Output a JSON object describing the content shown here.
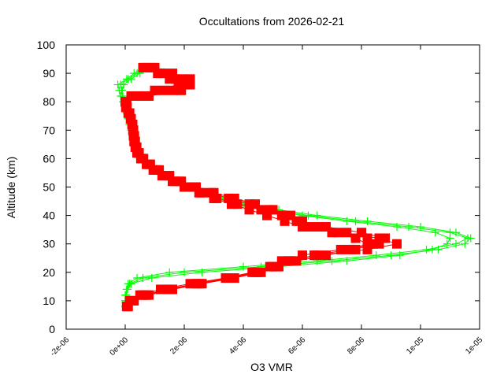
{
  "chart_data": {
    "type": "line",
    "title": "Occultations from 2026-02-21",
    "xlabel": "O3 VMR",
    "ylabel": "Altitude (km)",
    "xlim": [
      -2e-06,
      1.2e-05
    ],
    "ylim": [
      0,
      100
    ],
    "xticks": [
      -2e-06,
      0,
      2e-06,
      4e-06,
      6e-06,
      8e-06,
      1e-05,
      1.2e-05
    ],
    "xtick_labels": [
      "-2e-06",
      "0e+00",
      "2e-06",
      "4e-06",
      "6e-06",
      "8e-06",
      "1e-05",
      "1e-05"
    ],
    "yticks": [
      0,
      10,
      20,
      30,
      40,
      50,
      60,
      70,
      80,
      90,
      100
    ],
    "ytick_labels": [
      "0",
      "10",
      "20",
      "30",
      "40",
      "50",
      "60",
      "70",
      "80",
      "90",
      "100"
    ],
    "grid": false,
    "legend": null,
    "colors": {
      "green": "#00ff00",
      "red": "#ff0000",
      "axis": "#000000"
    },
    "altitudes": [
      8,
      10,
      12,
      14,
      16,
      18,
      20,
      22,
      24,
      26,
      28,
      30,
      32,
      34,
      36,
      38,
      40,
      42,
      44,
      46,
      48,
      50,
      52,
      54,
      56,
      58,
      60,
      62,
      64,
      66,
      68,
      70,
      72,
      74,
      76,
      78,
      80,
      82,
      84,
      86,
      88,
      90,
      92
    ],
    "series": [
      {
        "name": "green-1",
        "marker": "plus",
        "color": "#00ff00",
        "values": [
          0.0,
          0.0,
          0.0,
          5e-08,
          1e-07,
          4e-07,
          1.5e-06,
          4e-06,
          6.5e-06,
          8.5e-06,
          1.02e-05,
          1.12e-05,
          1.16e-05,
          1.1e-05,
          9.6e-06,
          7.8e-06,
          6.2e-06,
          5e-06,
          4e-06,
          3.2e-06,
          2.6e-06,
          2.1e-06,
          1.7e-06,
          1.3e-06,
          1e-06,
          7.5e-07,
          5.5e-07,
          4.2e-07,
          3.5e-07,
          3e-07,
          2.5e-07,
          2e-07,
          1.5e-07,
          1e-07,
          8e-08,
          2e-08,
          -5e-08,
          -1e-07,
          -1.2e-07,
          -1.5e-07,
          1e-07,
          4e-07,
          8e-07
        ]
      },
      {
        "name": "green-2",
        "marker": "plus",
        "color": "#00ff00",
        "values": [
          0.0,
          0.0,
          2e-08,
          5e-08,
          1.5e-07,
          6e-07,
          2e-06,
          4.6e-06,
          7e-06,
          9e-06,
          1.06e-05,
          1.15e-05,
          1.17e-05,
          1.12e-05,
          1e-05,
          8.2e-06,
          6.5e-06,
          5.2e-06,
          4.2e-06,
          3.4e-06,
          2.8e-06,
          2.2e-06,
          1.8e-06,
          1.4e-06,
          1.05e-06,
          8e-07,
          6e-07,
          4.5e-07,
          3.7e-07,
          3.2e-07,
          2.7e-07,
          2.2e-07,
          1.7e-07,
          1.2e-07,
          8e-08,
          0.0,
          -8e-08,
          -1.5e-07,
          -2e-07,
          -2.5e-07,
          5e-08,
          3e-07,
          6e-07
        ]
      },
      {
        "name": "green-3",
        "marker": "plus",
        "color": "#00ff00",
        "values": [
          2e-08,
          2e-08,
          3e-08,
          8e-08,
          2e-07,
          9e-07,
          2.6e-06,
          5.2e-06,
          7.5e-06,
          9.3e-06,
          1.04e-05,
          1.09e-05,
          1.1e-05,
          1.05e-05,
          9.2e-06,
          7.5e-06,
          6e-06,
          4.8e-06,
          3.9e-06,
          3.1e-06,
          2.5e-06,
          2e-06,
          1.6e-06,
          1.25e-06,
          9.5e-07,
          7e-07,
          5.2e-07,
          4e-07,
          3.3e-07,
          2.8e-07,
          2.4e-07,
          2e-07,
          1.4e-07,
          1e-07,
          5e-08,
          0.0,
          -4e-08,
          -8e-08,
          -1e-07,
          -5e-08,
          2e-07,
          5e-07,
          1e-06
        ]
      },
      {
        "name": "red-1",
        "marker": "square",
        "color": "#ff0000",
        "values": [
          5e-08,
          1.5e-07,
          5e-07,
          1.2e-06,
          2.2e-06,
          3.4e-06,
          4.3e-06,
          4.9e-06,
          5.3e-06,
          6e-06,
          7.3e-06,
          8.6e-06,
          8.8e-06,
          8e-06,
          6.8e-06,
          5.9e-06,
          5.3e-06,
          4.6e-06,
          3.8e-06,
          3.1e-06,
          2.6e-06,
          2.1e-06,
          1.7e-06,
          1.3e-06,
          1e-06,
          7.5e-07,
          5.5e-07,
          4.2e-07,
          3.6e-07,
          3.2e-07,
          3e-07,
          2.8e-07,
          2.5e-07,
          2e-07,
          1.5e-07,
          5e-08,
          0.0,
          2e-07,
          1e-06,
          1.8e-06,
          2.2e-06,
          1.6e-06,
          1e-06
        ]
      },
      {
        "name": "red-2",
        "marker": "square",
        "color": "#ff0000",
        "values": [
          1e-07,
          3e-07,
          8e-07,
          1.6e-06,
          2.6e-06,
          3.7e-06,
          4.6e-06,
          5.1e-06,
          5.6e-06,
          6.4e-06,
          7.6e-06,
          8.2e-06,
          7.8e-06,
          7e-06,
          6.3e-06,
          5.8e-06,
          5.4e-06,
          4.9e-06,
          4.2e-06,
          3.5e-06,
          2.9e-06,
          2.3e-06,
          1.85e-06,
          1.45e-06,
          1.1e-06,
          8e-07,
          6e-07,
          4.5e-07,
          3.8e-07,
          3.3e-07,
          3e-07,
          2.7e-07,
          2.4e-07,
          2e-07,
          1.2e-07,
          5e-08,
          5e-08,
          6e-07,
          1.6e-06,
          2e-06,
          1.9e-06,
          1.3e-06,
          7e-07
        ]
      },
      {
        "name": "red-3",
        "marker": "square",
        "color": "#ff0000",
        "values": [
          5e-08,
          2e-07,
          6e-07,
          1.4e-06,
          2.4e-06,
          3.5e-06,
          4.4e-06,
          5e-06,
          5.5e-06,
          6.5e-06,
          8.2e-06,
          9.2e-06,
          8.6e-06,
          7.2e-06,
          6e-06,
          5.4e-06,
          4.8e-06,
          4.2e-06,
          3.6e-06,
          3e-06,
          2.5e-06,
          2e-06,
          1.6e-06,
          1.25e-06,
          9.5e-07,
          7.2e-07,
          5.3e-07,
          4e-07,
          3.4e-07,
          3e-07,
          2.8e-07,
          2.6e-07,
          2.3e-07,
          1.8e-07,
          1e-07,
          2e-08,
          0.0,
          4e-07,
          1.3e-06,
          2.2e-06,
          1.7e-06,
          1.2e-06,
          9e-07
        ]
      },
      {
        "name": "red-4",
        "marker": "square",
        "color": "#ff0000",
        "values": [
          8e-08,
          2.5e-07,
          7e-07,
          1.5e-06,
          2.5e-06,
          3.6e-06,
          4.5e-06,
          5.2e-06,
          5.8e-06,
          6.8e-06,
          7.8e-06,
          8.4e-06,
          8.2e-06,
          7.5e-06,
          6.6e-06,
          6e-06,
          5.6e-06,
          5e-06,
          4.4e-06,
          3.7e-06,
          3e-06,
          2.4e-06,
          1.9e-06,
          1.5e-06,
          1.15e-06,
          8.5e-07,
          6.2e-07,
          4.7e-07,
          3.9e-07,
          3.4e-07,
          3.1e-07,
          2.8e-07,
          2.5e-07,
          2e-07,
          1.4e-07,
          6e-08,
          3e-08,
          8e-07,
          1.9e-06,
          2.1e-06,
          1.5e-06,
          1.1e-06,
          6e-07
        ]
      }
    ]
  }
}
